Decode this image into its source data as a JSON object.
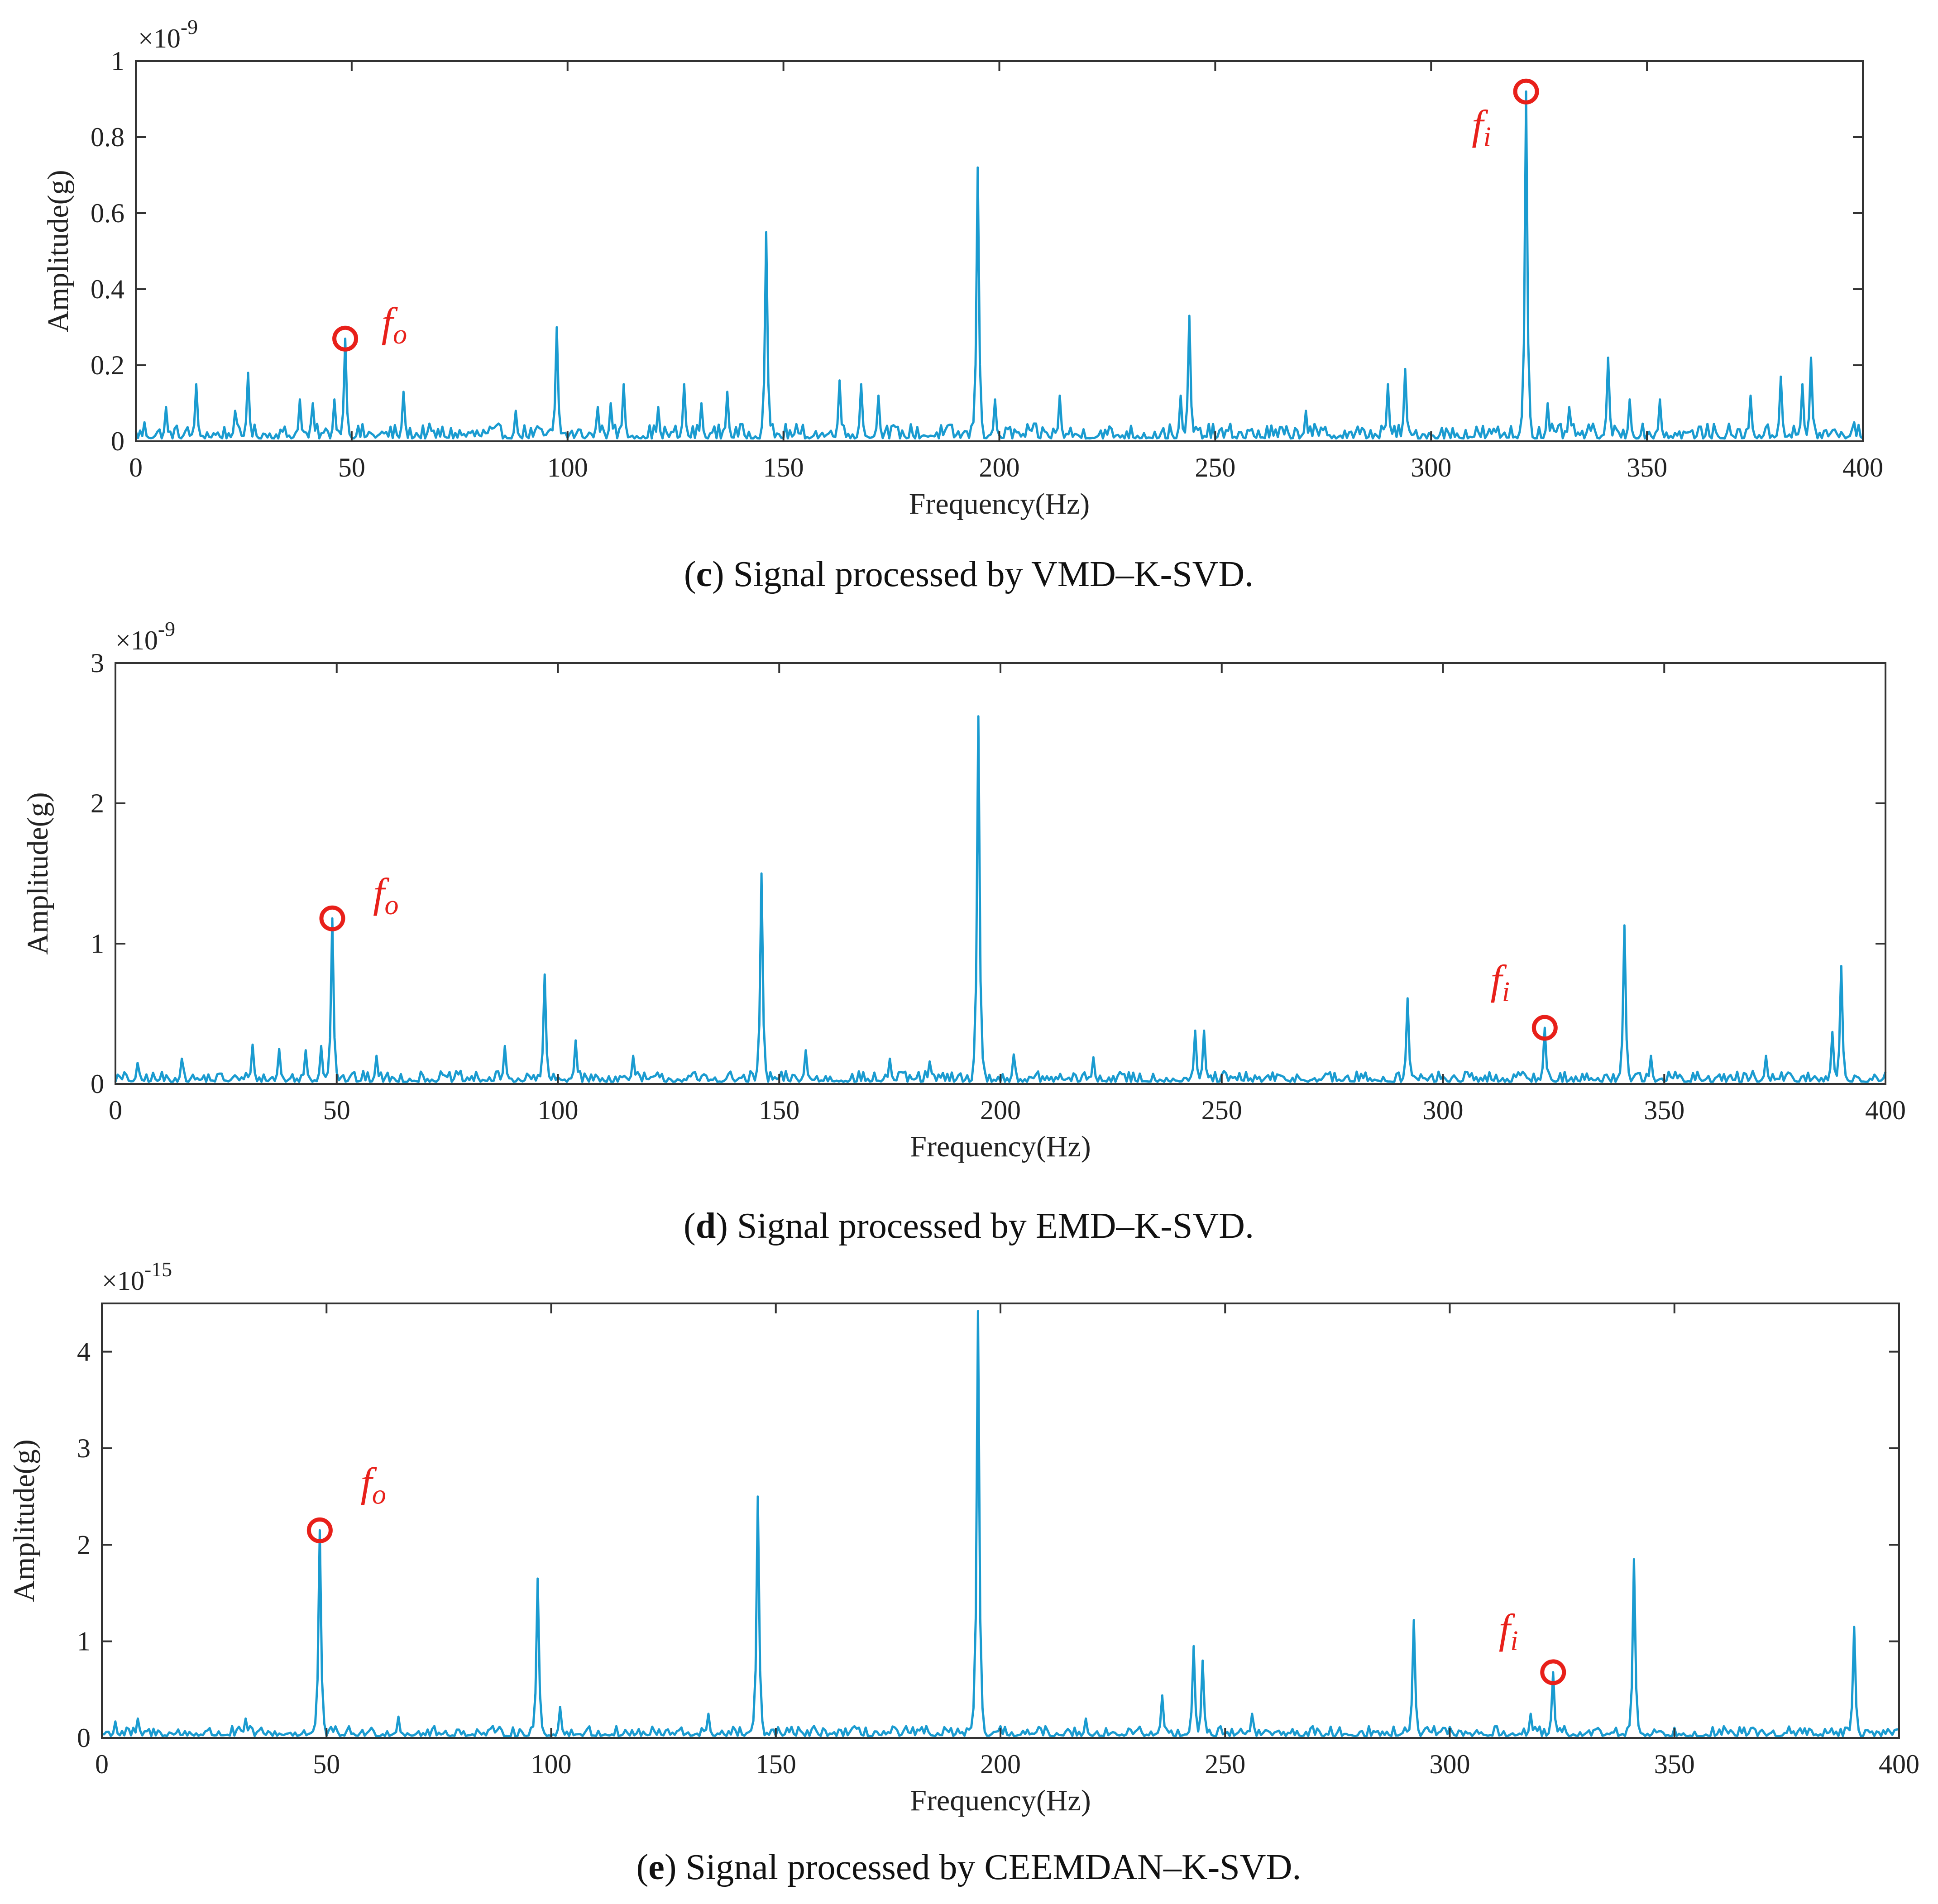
{
  "colors": {
    "signal": "#1a9bd0",
    "marker": "#e8201a",
    "axes": "#333333"
  },
  "chart_data": [
    {
      "type": "line",
      "panel": "c",
      "caption_label": "c",
      "caption_text": "Signal processed by VMD–K-SVD.",
      "xlabel": "Frequency(Hz)",
      "ylabel": "Amplitude(g)",
      "exponent": "×10",
      "exponent_power": "-9",
      "xlim": [
        0,
        400
      ],
      "ylim": [
        0,
        1
      ],
      "xticks": [
        0,
        50,
        100,
        150,
        200,
        250,
        300,
        350,
        400
      ],
      "yticks": [
        0,
        0.2,
        0.4,
        0.6,
        0.8,
        1
      ],
      "ytick_labels": [
        "0",
        "0.2",
        "0.4",
        "0.6",
        "0.8",
        "1"
      ],
      "noise_level": 0.03,
      "peaks": [
        [
          2,
          0.05
        ],
        [
          7,
          0.09
        ],
        [
          14,
          0.15
        ],
        [
          23,
          0.08
        ],
        [
          26,
          0.18
        ],
        [
          38,
          0.11
        ],
        [
          41,
          0.1
        ],
        [
          46,
          0.11
        ],
        [
          48.5,
          0.27
        ],
        [
          62,
          0.13
        ],
        [
          88,
          0.08
        ],
        [
          97.5,
          0.3
        ],
        [
          107,
          0.09
        ],
        [
          110,
          0.1
        ],
        [
          113,
          0.15
        ],
        [
          121,
          0.09
        ],
        [
          127,
          0.15
        ],
        [
          131,
          0.1
        ],
        [
          137,
          0.13
        ],
        [
          146,
          0.55
        ],
        [
          163,
          0.16
        ],
        [
          168,
          0.15
        ],
        [
          172,
          0.12
        ],
        [
          195,
          0.72
        ],
        [
          199,
          0.11
        ],
        [
          214,
          0.12
        ],
        [
          242,
          0.12
        ],
        [
          244,
          0.33
        ],
        [
          271,
          0.08
        ],
        [
          290,
          0.15
        ],
        [
          294,
          0.19
        ],
        [
          322,
          0.92
        ],
        [
          327,
          0.1
        ],
        [
          332,
          0.09
        ],
        [
          341,
          0.22
        ],
        [
          346,
          0.11
        ],
        [
          353,
          0.11
        ],
        [
          374,
          0.12
        ],
        [
          381,
          0.17
        ],
        [
          386,
          0.15
        ],
        [
          388,
          0.22
        ],
        [
          398,
          0.05
        ]
      ],
      "annotations": [
        {
          "label": "f",
          "sub": "o",
          "x": 48.5,
          "y": 0.27
        },
        {
          "label": "f",
          "sub": "i",
          "x": 322,
          "y": 0.92
        }
      ]
    },
    {
      "type": "line",
      "panel": "d",
      "caption_label": "d",
      "caption_text": "Signal processed by EMD–K-SVD.",
      "xlabel": "Frequency(Hz)",
      "ylabel": "Amplitude(g)",
      "exponent": "×10",
      "exponent_power": "-9",
      "xlim": [
        0,
        400
      ],
      "ylim": [
        0,
        3
      ],
      "xticks": [
        0,
        50,
        100,
        150,
        200,
        250,
        300,
        350,
        400
      ],
      "yticks": [
        0,
        1,
        2,
        3
      ],
      "ytick_labels": [
        "0",
        "1",
        "2",
        "3"
      ],
      "noise_level": 0.06,
      "peaks": [
        [
          5,
          0.15
        ],
        [
          15,
          0.18
        ],
        [
          31,
          0.28
        ],
        [
          37,
          0.25
        ],
        [
          43,
          0.24
        ],
        [
          46.5,
          0.27
        ],
        [
          49,
          1.18
        ],
        [
          59,
          0.2
        ],
        [
          88,
          0.27
        ],
        [
          97,
          0.78
        ],
        [
          104,
          0.31
        ],
        [
          117,
          0.2
        ],
        [
          146,
          1.5
        ],
        [
          156,
          0.24
        ],
        [
          175,
          0.18
        ],
        [
          184,
          0.16
        ],
        [
          195,
          2.62
        ],
        [
          203,
          0.21
        ],
        [
          221,
          0.19
        ],
        [
          244,
          0.38
        ],
        [
          246,
          0.38
        ],
        [
          292,
          0.61
        ],
        [
          323,
          0.4
        ],
        [
          341,
          1.13
        ],
        [
          347,
          0.2
        ],
        [
          373,
          0.2
        ],
        [
          388,
          0.37
        ],
        [
          390,
          0.84
        ]
      ],
      "annotations": [
        {
          "label": "f",
          "sub": "o",
          "x": 49,
          "y": 1.18
        },
        {
          "label": "f",
          "sub": "i",
          "x": 323,
          "y": 0.4
        }
      ]
    },
    {
      "type": "line",
      "panel": "e",
      "caption_label": "e",
      "caption_text": "Signal processed by CEEMDAN–K-SVD.",
      "xlabel": "Frequency(Hz)",
      "ylabel": "Amplitude(g)",
      "exponent": "×10",
      "exponent_power": "-15",
      "xlim": [
        0,
        400
      ],
      "ylim": [
        0,
        4.5
      ],
      "xticks": [
        0,
        50,
        100,
        150,
        200,
        250,
        300,
        350,
        400
      ],
      "yticks": [
        0,
        1,
        2,
        3,
        4
      ],
      "ytick_labels": [
        "0",
        "1",
        "2",
        "3",
        "4"
      ],
      "noise_level": 0.08,
      "peaks": [
        [
          3,
          0.17
        ],
        [
          8,
          0.2
        ],
        [
          32,
          0.2
        ],
        [
          48.5,
          2.15
        ],
        [
          66,
          0.22
        ],
        [
          97,
          1.65
        ],
        [
          102,
          0.32
        ],
        [
          135,
          0.25
        ],
        [
          146,
          2.5
        ],
        [
          195,
          4.42
        ],
        [
          219,
          0.2
        ],
        [
          236,
          0.44
        ],
        [
          243,
          0.95
        ],
        [
          245,
          0.8
        ],
        [
          256,
          0.25
        ],
        [
          292,
          1.22
        ],
        [
          318,
          0.25
        ],
        [
          323,
          0.68
        ],
        [
          341,
          1.85
        ],
        [
          390,
          1.15
        ]
      ],
      "annotations": [
        {
          "label": "f",
          "sub": "o",
          "x": 48.5,
          "y": 2.15
        },
        {
          "label": "f",
          "sub": "i",
          "x": 323,
          "y": 0.68
        }
      ]
    }
  ]
}
